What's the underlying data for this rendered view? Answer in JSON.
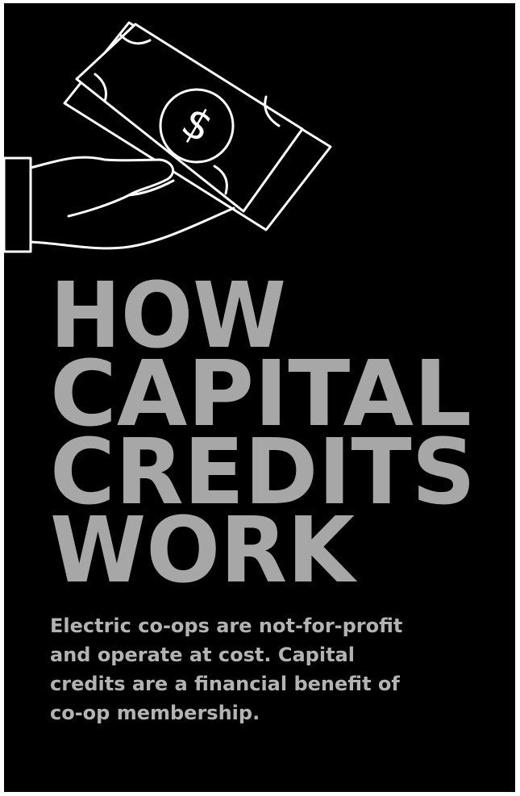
{
  "heading": {
    "lines": [
      "HOW",
      "CAPITAL",
      "CREDITS",
      "WORK"
    ]
  },
  "body": {
    "lines": [
      "Electric co-ops are not-for-profit",
      "and operate at cost. Capital",
      "credits are a financial benefit of",
      "co-op membership."
    ]
  },
  "icon": {
    "symbol": "$"
  }
}
